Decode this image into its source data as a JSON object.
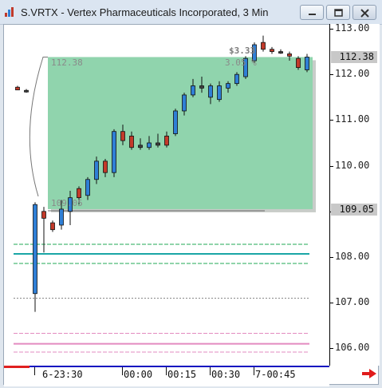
{
  "window": {
    "title": "S.VRTX - Vertex Pharmaceuticals Incorporated, 3 Min",
    "icons": [
      "app-icon",
      "minimize-icon",
      "restore-icon",
      "close-icon"
    ]
  },
  "chart_data": {
    "type": "candlestick",
    "symbol": "S.VRTX",
    "interval": "3 Min",
    "ylim": [
      105.8,
      113.1
    ],
    "y_ticks": [
      113.0,
      112.0,
      111.0,
      110.0,
      109.0,
      108.0,
      107.0,
      106.0
    ],
    "y_tick_labels": [
      "113.00",
      "112.00",
      "111.00",
      "110.00",
      "109.00",
      "108.00",
      "107.00",
      "106.00"
    ],
    "last_price_labels": [
      "112.38",
      "109.05"
    ],
    "x_tick_labels": [
      "6-23:30",
      "00:00",
      "00:15",
      "00:30",
      "7-00:45"
    ],
    "candles": [
      {
        "i": 0,
        "o": 111.72,
        "h": 111.75,
        "l": 111.68,
        "c": 111.66,
        "dir": "down"
      },
      {
        "i": 1,
        "o": 111.65,
        "h": 111.68,
        "l": 111.6,
        "c": 111.62,
        "dir": "flat"
      },
      {
        "i": 2,
        "o": 107.2,
        "h": 109.2,
        "l": 106.8,
        "c": 109.15,
        "dir": "up"
      },
      {
        "i": 3,
        "o": 109.0,
        "h": 109.1,
        "l": 108.1,
        "c": 108.85,
        "dir": "down"
      },
      {
        "i": 4,
        "o": 108.75,
        "h": 108.8,
        "l": 108.55,
        "c": 108.6,
        "dir": "down"
      },
      {
        "i": 5,
        "o": 108.7,
        "h": 109.25,
        "l": 108.6,
        "c": 109.05,
        "dir": "up"
      },
      {
        "i": 6,
        "o": 109.0,
        "h": 109.45,
        "l": 108.7,
        "c": 109.3,
        "dir": "up"
      },
      {
        "i": 7,
        "o": 109.3,
        "h": 109.55,
        "l": 109.15,
        "c": 109.5,
        "dir": "down"
      },
      {
        "i": 8,
        "o": 109.35,
        "h": 109.75,
        "l": 109.25,
        "c": 109.7,
        "dir": "up"
      },
      {
        "i": 9,
        "o": 109.7,
        "h": 110.2,
        "l": 109.6,
        "c": 110.1,
        "dir": "up"
      },
      {
        "i": 10,
        "o": 110.1,
        "h": 110.15,
        "l": 109.75,
        "c": 109.85,
        "dir": "down"
      },
      {
        "i": 11,
        "o": 109.85,
        "h": 110.8,
        "l": 109.75,
        "c": 110.75,
        "dir": "up"
      },
      {
        "i": 12,
        "o": 110.75,
        "h": 110.9,
        "l": 110.45,
        "c": 110.55,
        "dir": "down"
      },
      {
        "i": 13,
        "o": 110.65,
        "h": 110.75,
        "l": 110.35,
        "c": 110.4,
        "dir": "down"
      },
      {
        "i": 14,
        "o": 110.4,
        "h": 110.6,
        "l": 110.35,
        "c": 110.45,
        "dir": "flat"
      },
      {
        "i": 15,
        "o": 110.4,
        "h": 110.65,
        "l": 110.35,
        "c": 110.5,
        "dir": "up"
      },
      {
        "i": 16,
        "o": 110.5,
        "h": 110.7,
        "l": 110.4,
        "c": 110.45,
        "dir": "flat"
      },
      {
        "i": 17,
        "o": 110.45,
        "h": 110.75,
        "l": 110.4,
        "c": 110.65,
        "dir": "down"
      },
      {
        "i": 18,
        "o": 110.7,
        "h": 111.25,
        "l": 110.65,
        "c": 111.2,
        "dir": "up"
      },
      {
        "i": 19,
        "o": 111.2,
        "h": 111.6,
        "l": 111.1,
        "c": 111.55,
        "dir": "up"
      },
      {
        "i": 20,
        "o": 111.55,
        "h": 111.9,
        "l": 111.5,
        "c": 111.75,
        "dir": "up"
      },
      {
        "i": 21,
        "o": 111.75,
        "h": 111.95,
        "l": 111.6,
        "c": 111.7,
        "dir": "flat"
      },
      {
        "i": 22,
        "o": 111.75,
        "h": 111.8,
        "l": 111.35,
        "c": 111.5,
        "dir": "up"
      },
      {
        "i": 23,
        "o": 111.45,
        "h": 111.85,
        "l": 111.4,
        "c": 111.75,
        "dir": "up"
      },
      {
        "i": 24,
        "o": 111.7,
        "h": 111.85,
        "l": 111.6,
        "c": 111.8,
        "dir": "up"
      },
      {
        "i": 25,
        "o": 111.8,
        "h": 112.05,
        "l": 111.75,
        "c": 112.0,
        "dir": "up"
      },
      {
        "i": 26,
        "o": 111.95,
        "h": 112.4,
        "l": 111.9,
        "c": 112.35,
        "dir": "up"
      },
      {
        "i": 27,
        "o": 112.3,
        "h": 112.7,
        "l": 112.25,
        "c": 112.65,
        "dir": "up"
      },
      {
        "i": 28,
        "o": 112.7,
        "h": 112.85,
        "l": 112.5,
        "c": 112.55,
        "dir": "down"
      },
      {
        "i": 29,
        "o": 112.55,
        "h": 112.6,
        "l": 112.45,
        "c": 112.5,
        "dir": "down"
      },
      {
        "i": 30,
        "o": 112.5,
        "h": 112.55,
        "l": 112.45,
        "c": 112.5,
        "dir": "flat"
      },
      {
        "i": 31,
        "o": 112.45,
        "h": 112.5,
        "l": 112.3,
        "c": 112.4,
        "dir": "down"
      },
      {
        "i": 32,
        "o": 112.35,
        "h": 112.4,
        "l": 112.1,
        "c": 112.15,
        "dir": "down"
      },
      {
        "i": 33,
        "o": 112.1,
        "h": 112.45,
        "l": 112.05,
        "c": 112.38,
        "dir": "up"
      }
    ],
    "range_box": {
      "start_index": 2,
      "end_index": 30,
      "low": 109.05,
      "high": 112.38,
      "low_label": "109.05",
      "high_label": "112.38",
      "change_label": "$3.33",
      "change_pct_label": "3.05 %"
    },
    "horizontal_lines": [
      {
        "price": 108.28,
        "style": "dashed",
        "color": "#22aa55"
      },
      {
        "price": 108.07,
        "style": "solid",
        "color": "#1aa6a6"
      },
      {
        "price": 107.86,
        "style": "dashed",
        "color": "#22aa55"
      },
      {
        "price": 107.1,
        "style": "dotted",
        "color": "#888888"
      },
      {
        "price": 106.33,
        "style": "dashed",
        "color": "#e38bc0"
      },
      {
        "price": 106.1,
        "style": "solid",
        "color": "#e38bc0"
      },
      {
        "price": 105.92,
        "style": "dashed",
        "color": "#e38bc0"
      }
    ],
    "colors": {
      "up": "#2f7fd6",
      "down": "#c33a2a",
      "box_fill": "#90d4ad",
      "grid": "#7a7a7a"
    }
  }
}
